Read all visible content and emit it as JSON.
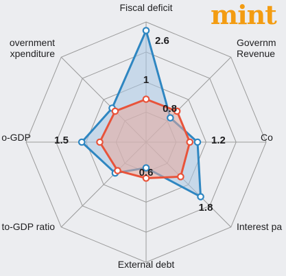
{
  "brand": {
    "name": "mint",
    "color": "#f39c12"
  },
  "chart_data": {
    "type": "radar",
    "title": "",
    "axes": [
      "Fiscal deficit",
      "Government Revenue",
      "Co",
      "Interest pa",
      "External debt",
      "to-GDP ratio",
      "o-GDP",
      "overnment expenditure"
    ],
    "axis_label_lines": [
      [
        "Fiscal deficit"
      ],
      [
        "Governm",
        "Revenue"
      ],
      [
        "Co"
      ],
      [
        "Interest pa"
      ],
      [
        "External debt"
      ],
      [
        "to-GDP ratio"
      ],
      [
        "o-GDP"
      ],
      [
        "overnment",
        "xpenditure"
      ]
    ],
    "rings": 4,
    "r_max": 2.8,
    "series": [
      {
        "color": "#2e86c1",
        "fill": "#a9c7e3",
        "values": [
          2.6,
          0.8,
          1.2,
          1.8,
          0.6,
          1.02,
          1.5,
          1.12
        ]
      },
      {
        "color": "#e8533a",
        "fill": "#e8a99c",
        "values": [
          1.0,
          1.02,
          1.02,
          1.14,
          0.84,
          0.94,
          1.08,
          1.02
        ]
      }
    ],
    "data_labels": [
      {
        "axis": 0,
        "text": "2.6"
      },
      {
        "axis": 0,
        "text": "1"
      },
      {
        "axis": 1,
        "text": "0.8"
      },
      {
        "axis": 2,
        "text": "1.2"
      },
      {
        "axis": 3,
        "text": "1.8"
      },
      {
        "axis": 4,
        "text": "0.6"
      },
      {
        "axis": 6,
        "text": "1.5"
      }
    ],
    "grid": true,
    "legend": "none"
  }
}
